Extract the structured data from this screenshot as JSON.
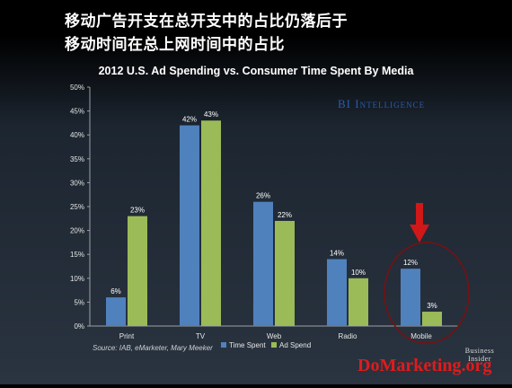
{
  "headline": {
    "line1": "移动广告开支在总开支中的占比仍落后于",
    "line2": "移动时间在总上网时间中的占比"
  },
  "brand": "BI Intelligence",
  "source": "Source:  IAB, eMarketer, Mary Meeker",
  "footer_logo": "Business Insider",
  "watermark": "DoMarketing.org",
  "colors": {
    "time_spent": "#4f81bd",
    "ad_spend": "#9bbb59",
    "highlight": "#d01818"
  },
  "chart_data": {
    "type": "bar",
    "title": "2012 U.S. Ad Spending vs. Consumer Time Spent By Media",
    "categories": [
      "Print",
      "TV",
      "Web",
      "Radio",
      "Mobile"
    ],
    "series": [
      {
        "name": "Time Spent",
        "values": [
          6,
          42,
          26,
          14,
          12
        ],
        "labels": [
          "6%",
          "42%",
          "26%",
          "14%",
          "12%"
        ]
      },
      {
        "name": "Ad Spend",
        "values": [
          23,
          43,
          22,
          10,
          3
        ],
        "labels": [
          "23%",
          "43%",
          "22%",
          "10%",
          "3%"
        ]
      }
    ],
    "ylim": [
      0,
      50
    ],
    "yticks": [
      "0%",
      "5%",
      "10%",
      "15%",
      "20%",
      "25%",
      "30%",
      "35%",
      "40%",
      "45%",
      "50%"
    ],
    "legend": "bottom",
    "grid": false,
    "highlight_category": "Mobile"
  }
}
